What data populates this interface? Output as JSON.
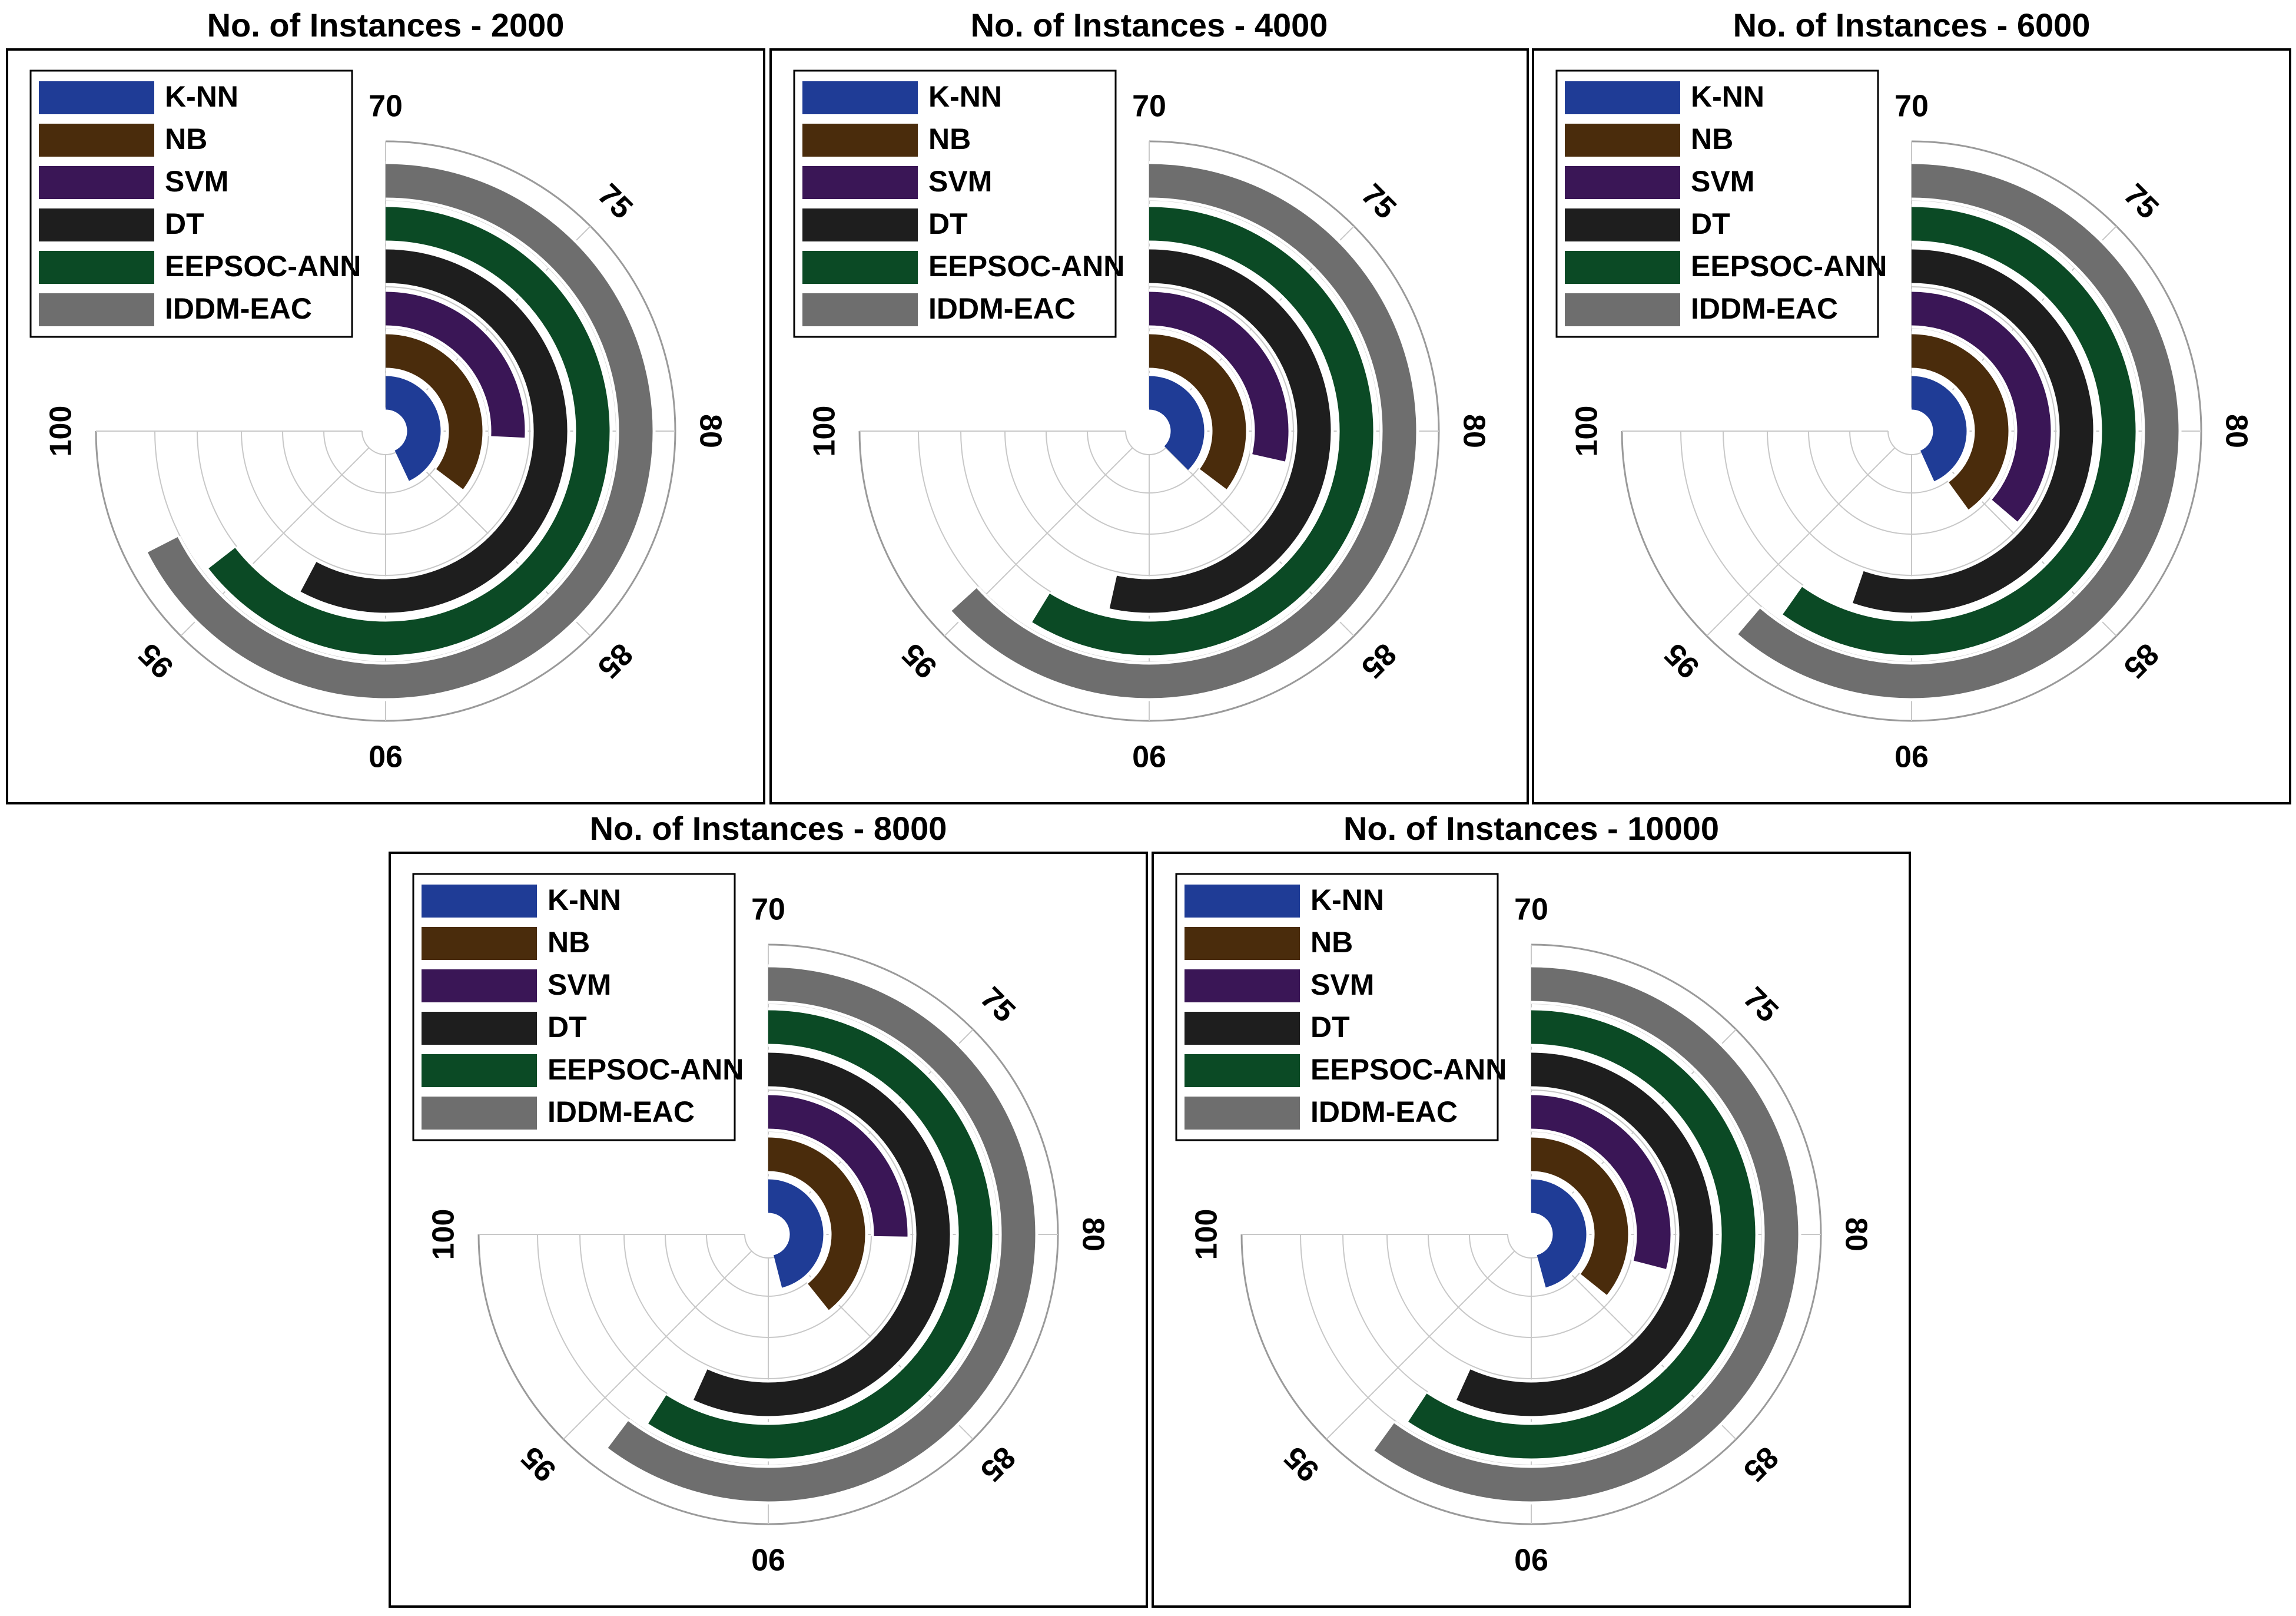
{
  "figure": {
    "tick_labels": [
      "70",
      "75",
      "80",
      "85",
      "90",
      "95",
      "100"
    ]
  },
  "legend": [
    {
      "name": "K-NN",
      "color": "#1f3c96"
    },
    {
      "name": "NB",
      "color": "#4a2c0c"
    },
    {
      "name": "SVM",
      "color": "#3a1656"
    },
    {
      "name": "DT",
      "color": "#1e1e1e"
    },
    {
      "name": "EEPSOC-ANN",
      "color": "#0b4a25"
    },
    {
      "name": "IDDM-EAC",
      "color": "#6e6e6e"
    }
  ],
  "chart_data": [
    {
      "type": "radial_bar",
      "title": "No. of Instances - 2000",
      "axis_range": [
        70,
        100
      ],
      "categories": [
        "K-NN",
        "NB",
        "SVM",
        "DT",
        "EEPSOC-ANN",
        "IDDM-EAC"
      ],
      "values": [
        87.2,
        84.1,
        80.3,
        93.1,
        95.8,
        97.0
      ]
    },
    {
      "type": "radial_bar",
      "title": "No. of Instances - 4000",
      "axis_range": [
        70,
        100
      ],
      "categories": [
        "K-NN",
        "NB",
        "SVM",
        "DT",
        "EEPSOC-ANN",
        "IDDM-EAC"
      ],
      "values": [
        85.0,
        84.1,
        81.4,
        91.4,
        93.5,
        95.3
      ]
    },
    {
      "type": "radial_bar",
      "title": "No. of Instances - 6000",
      "axis_range": [
        70,
        100
      ],
      "categories": [
        "K-NN",
        "NB",
        "SVM",
        "DT",
        "EEPSOC-ANN",
        "IDDM-EAC"
      ],
      "values": [
        87.3,
        86.0,
        84.5,
        92.1,
        93.9,
        94.5
      ]
    },
    {
      "type": "radial_bar",
      "title": "No. of Instances - 8000",
      "axis_range": [
        70,
        100
      ],
      "categories": [
        "K-NN",
        "NB",
        "SVM",
        "DT",
        "EEPSOC-ANN",
        "IDDM-EAC"
      ],
      "values": [
        88.4,
        85.7,
        80.1,
        92.7,
        93.6,
        94.1
      ]
    },
    {
      "type": "radial_bar",
      "title": "No. of Instances - 10000",
      "axis_range": [
        70,
        100
      ],
      "categories": [
        "K-NN",
        "NB",
        "SVM",
        "DT",
        "EEPSOC-ANN",
        "IDDM-EAC"
      ],
      "values": [
        88.3,
        84.3,
        81.6,
        92.7,
        93.7,
        94.0
      ]
    }
  ]
}
